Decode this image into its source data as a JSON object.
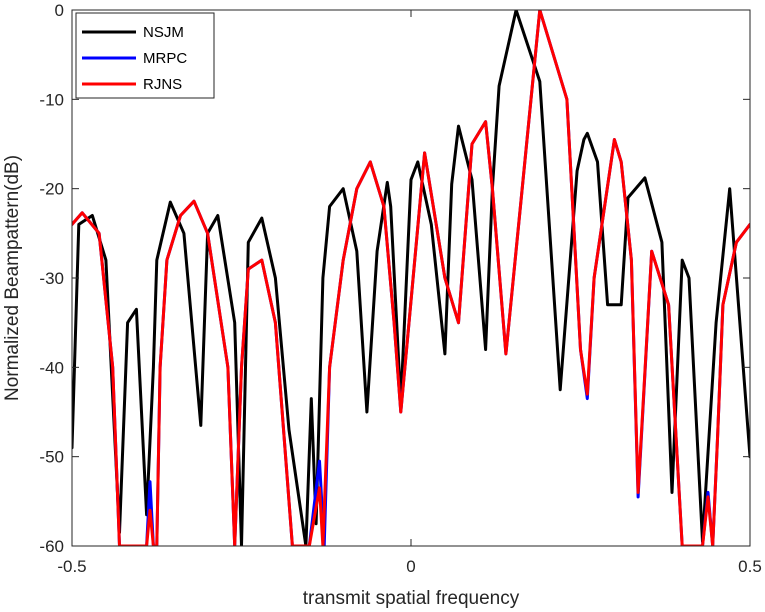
{
  "chart_data": {
    "type": "line",
    "title": "",
    "xlabel": "transmit spatial frequency",
    "ylabel": "Normalized Beampattern(dB)",
    "xlim": [
      -0.5,
      0.5
    ],
    "ylim": [
      -60,
      0
    ],
    "xticks": [
      -0.5,
      0,
      0.5
    ],
    "xtick_labels": [
      "-0.5",
      "0",
      "0.5"
    ],
    "yticks": [
      0,
      -10,
      -20,
      -30,
      -40,
      -50,
      -60
    ],
    "ytick_labels": [
      "0",
      "-10",
      "-20",
      "-30",
      "-40",
      "-50",
      "-60"
    ],
    "grid": false,
    "legend_location": "top-left",
    "series": [
      {
        "name": "NSJM",
        "color": "#000000",
        "x": [
          -0.5,
          -0.49,
          -0.47,
          -0.45,
          -0.43,
          -0.418,
          -0.405,
          -0.39,
          -0.38,
          -0.375,
          -0.355,
          -0.335,
          -0.31,
          -0.3,
          -0.285,
          -0.26,
          -0.25,
          -0.24,
          -0.22,
          -0.2,
          -0.18,
          -0.155,
          -0.147,
          -0.14,
          -0.13,
          -0.12,
          -0.1,
          -0.08,
          -0.065,
          -0.05,
          -0.035,
          -0.03,
          -0.015,
          0,
          0.01,
          0.03,
          0.05,
          0.06,
          0.07,
          0.09,
          0.11,
          0.12,
          0.13,
          0.155,
          0.19,
          0.22,
          0.245,
          0.255,
          0.26,
          0.275,
          0.29,
          0.31,
          0.32,
          0.345,
          0.37,
          0.385,
          0.4,
          0.41,
          0.43,
          0.45,
          0.47,
          0.5
        ],
        "y": [
          -49,
          -24,
          -23,
          -28,
          -58.5,
          -35,
          -33.5,
          -56.5,
          -40,
          -28,
          -21.5,
          -25,
          -46.5,
          -25,
          -23,
          -35,
          -60,
          -26,
          -23.3,
          -30,
          -47,
          -60,
          -43.5,
          -57.5,
          -30,
          -22,
          -20,
          -27,
          -45,
          -27,
          -19.3,
          -22,
          -44,
          -19,
          -17,
          -24,
          -38.5,
          -19.5,
          -13,
          -19,
          -38,
          -20,
          -8.5,
          0,
          -8,
          -42.5,
          -18,
          -14.5,
          -13.8,
          -17,
          -33,
          -33,
          -21,
          -18.8,
          -26,
          -54,
          -28,
          -30,
          -59.5,
          -35,
          -20,
          -50
        ]
      },
      {
        "name": "MRPC",
        "color": "#0000ff",
        "x": [
          -0.5,
          -0.485,
          -0.46,
          -0.44,
          -0.43,
          -0.405,
          -0.39,
          -0.385,
          -0.38,
          -0.375,
          -0.37,
          -0.36,
          -0.34,
          -0.32,
          -0.3,
          -0.27,
          -0.26,
          -0.25,
          -0.24,
          -0.22,
          -0.2,
          -0.175,
          -0.16,
          -0.15,
          -0.135,
          -0.128,
          -0.12,
          -0.1,
          -0.08,
          -0.06,
          -0.04,
          -0.025,
          -0.015,
          0.02,
          0.05,
          0.07,
          0.09,
          0.11,
          0.12,
          0.14,
          0.19,
          0.23,
          0.25,
          0.26,
          0.27,
          0.3,
          0.31,
          0.325,
          0.335,
          0.355,
          0.38,
          0.4,
          0.42,
          0.43,
          0.438,
          0.445,
          0.452,
          0.46,
          0.48,
          0.5
        ],
        "y": [
          -24,
          -22.7,
          -25,
          -40,
          -60,
          -60,
          -60,
          -52.8,
          -60,
          -60,
          -40,
          -28,
          -23,
          -21.4,
          -25,
          -40,
          -60,
          -40,
          -29,
          -28,
          -35,
          -60,
          -60,
          -60,
          -50.5,
          -60,
          -40,
          -28,
          -20,
          -17,
          -22,
          -35,
          -45,
          -16,
          -30,
          -35,
          -15,
          -12.5,
          -20,
          -38.5,
          0,
          -10,
          -38,
          -43.5,
          -30,
          -14.5,
          -17,
          -28,
          -54.5,
          -27,
          -33,
          -60,
          -60,
          -60,
          -54,
          -60,
          -48,
          -33,
          -26,
          -24
        ]
      },
      {
        "name": "RJNS",
        "color": "#ff0000",
        "x": [
          -0.5,
          -0.485,
          -0.46,
          -0.44,
          -0.43,
          -0.405,
          -0.39,
          -0.385,
          -0.38,
          -0.375,
          -0.37,
          -0.36,
          -0.34,
          -0.32,
          -0.3,
          -0.27,
          -0.26,
          -0.25,
          -0.24,
          -0.22,
          -0.2,
          -0.175,
          -0.16,
          -0.15,
          -0.135,
          -0.13,
          -0.12,
          -0.1,
          -0.08,
          -0.06,
          -0.04,
          -0.025,
          -0.015,
          0.02,
          0.05,
          0.07,
          0.09,
          0.11,
          0.12,
          0.14,
          0.19,
          0.23,
          0.25,
          0.26,
          0.27,
          0.3,
          0.31,
          0.325,
          0.335,
          0.355,
          0.38,
          0.4,
          0.42,
          0.43,
          0.438,
          0.445,
          0.452,
          0.46,
          0.48,
          0.5
        ],
        "y": [
          -24,
          -22.7,
          -25,
          -40,
          -60,
          -60,
          -60,
          -56,
          -60,
          -60,
          -40,
          -28,
          -23,
          -21.4,
          -25,
          -40,
          -60,
          -40,
          -29,
          -28,
          -35,
          -60,
          -60,
          -60,
          -53.5,
          -60,
          -40,
          -28,
          -20,
          -17,
          -22,
          -35,
          -45,
          -16,
          -30,
          -35,
          -15,
          -12.5,
          -20,
          -38.5,
          0,
          -10,
          -38,
          -43,
          -30,
          -14.5,
          -17,
          -28,
          -54,
          -27,
          -33,
          -60,
          -60,
          -60,
          -54.5,
          -60,
          -48,
          -33,
          -26,
          -24
        ]
      }
    ]
  }
}
